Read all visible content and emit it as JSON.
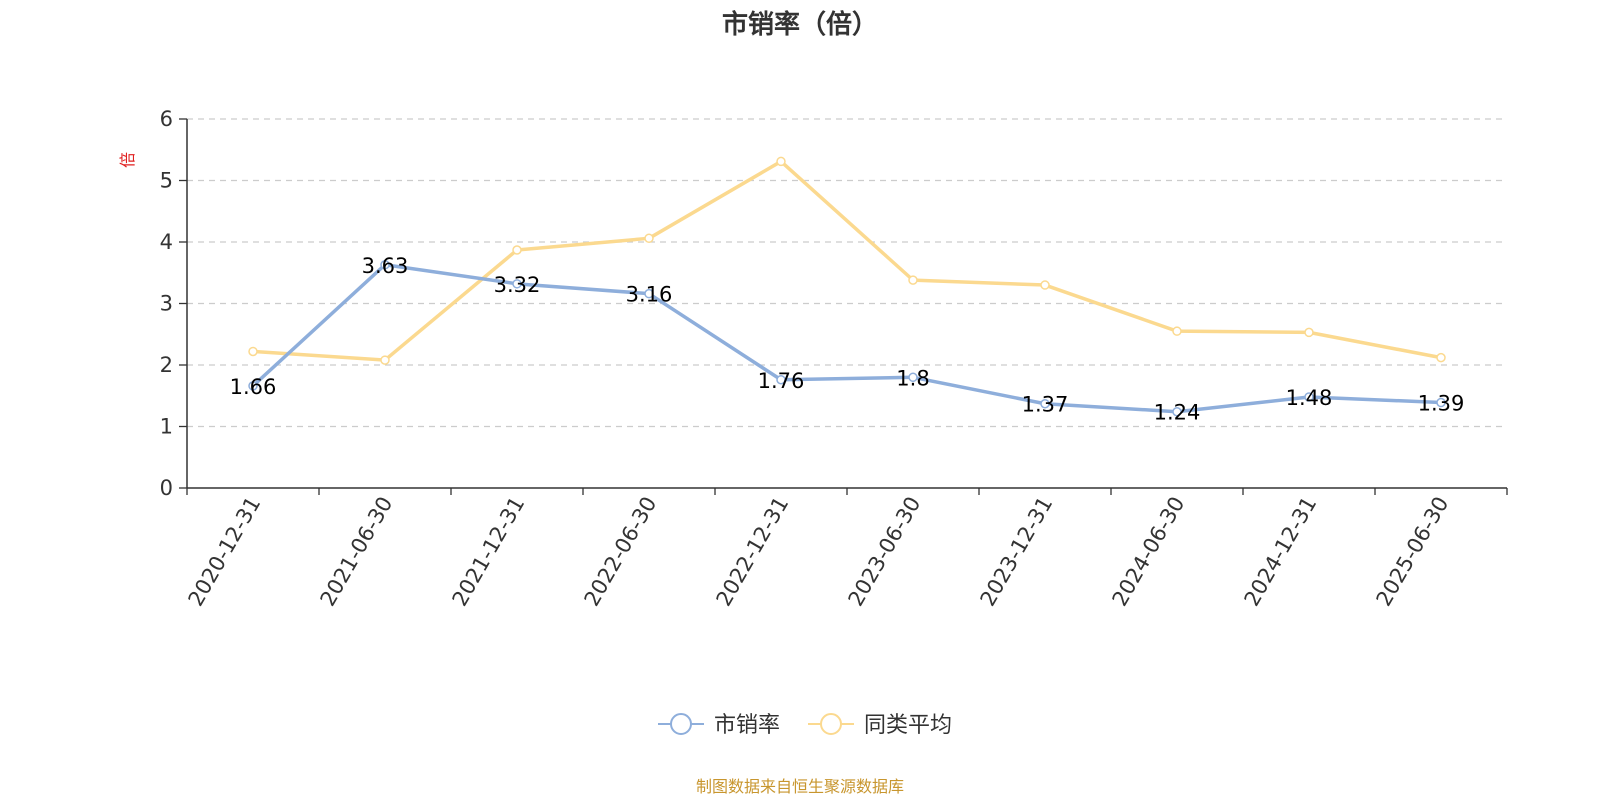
{
  "chart_data": {
    "type": "line",
    "title": "市销率（倍）",
    "ylabel": "倍",
    "ylim": [
      0,
      6
    ],
    "yticks": [
      0,
      1,
      2,
      3,
      4,
      5,
      6
    ],
    "grid": true,
    "legend_placement": "bottom-center",
    "categories": [
      "2020-12-31",
      "2021-06-30",
      "2021-12-31",
      "2022-06-30",
      "2022-12-31",
      "2023-06-30",
      "2023-12-31",
      "2024-06-30",
      "2024-12-31",
      "2025-06-30"
    ],
    "series": [
      {
        "name": "市销率",
        "color": "#8eaedb",
        "values": [
          1.66,
          3.63,
          3.32,
          3.16,
          1.76,
          1.8,
          1.37,
          1.24,
          1.48,
          1.39
        ],
        "labels": [
          "1.66",
          "3.63",
          "3.32",
          "3.16",
          "1.76",
          "1.8",
          "1.37",
          "1.24",
          "1.48",
          "1.39"
        ]
      },
      {
        "name": "同类平均",
        "color": "#fbd98f",
        "values": [
          2.22,
          2.08,
          3.87,
          4.06,
          5.31,
          3.38,
          3.3,
          2.55,
          2.53,
          2.12
        ]
      }
    ],
    "source": "制图数据来自恒生聚源数据库",
    "source_color": "#c8962e",
    "ylabel_color": "#e02020"
  }
}
